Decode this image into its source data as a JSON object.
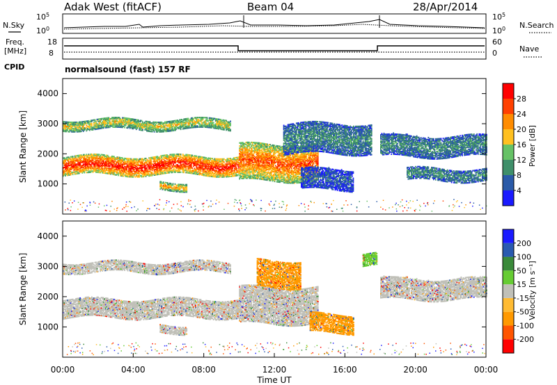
{
  "header": {
    "station": "Adak West (fitACF)",
    "beam": "Beam 04",
    "date": "28/Apr/2014"
  },
  "noise_panel": {
    "left_label": "N.Sky",
    "left_ticks": [
      "10^5",
      "10^0"
    ],
    "right_label": "N.Search",
    "right_ticks": [
      "10^5",
      "10^0"
    ]
  },
  "freq_panel": {
    "left_label_1": "Freq.",
    "left_label_2": "[MHz]",
    "left_ticks": [
      "18",
      "8"
    ],
    "right_label": "Nave",
    "right_ticks": [
      "60",
      "0"
    ],
    "cpid_label": "CPID",
    "cpid_text": "normalsound (fast) 157 RF"
  },
  "colors": {
    "power_bar": [
      "#1a1aff",
      "#2a5aa8",
      "#3f8f6a",
      "#66c266",
      "#ffc020",
      "#ff8c00",
      "#ff4000",
      "#ff0000"
    ],
    "velocity_bar": [
      "#ff0000",
      "#ff5500",
      "#ff9900",
      "#ffbb33",
      "#c0c0b8",
      "#66cc33",
      "#3a8a3a",
      "#2a5ab0",
      "#1a1aff"
    ],
    "ground_scatter": "#c0c0b8"
  },
  "chart_data": [
    {
      "type": "heatmap",
      "title": "Power",
      "ylabel": "Slant Range [km]",
      "colorbar_label": "Power [dB]",
      "colorbar_ticks": [
        "4",
        "8",
        "12",
        "16",
        "20",
        "24",
        "28"
      ],
      "xlim": [
        "00:00",
        "24:00"
      ],
      "ylim": [
        0,
        4500
      ],
      "yticks": [
        "1000",
        "2000",
        "3000",
        "4000"
      ],
      "bands": [
        {
          "t0": 0.0,
          "t1": 10.0,
          "r0": 1300,
          "r1": 1900,
          "level": 7
        },
        {
          "t0": 0.0,
          "t1": 9.5,
          "r0": 2800,
          "r1": 3150,
          "level": 4
        },
        {
          "t0": 5.5,
          "t1": 7.0,
          "r0": 800,
          "r1": 1050,
          "level": 5
        },
        {
          "t0": 10.0,
          "t1": 14.5,
          "r0": 1100,
          "r1": 2300,
          "level": 6
        },
        {
          "t0": 12.5,
          "t1": 17.5,
          "r0": 2000,
          "r1": 3000,
          "level": 2
        },
        {
          "t0": 13.5,
          "t1": 16.5,
          "r0": 800,
          "r1": 1500,
          "level": 1
        },
        {
          "t0": 18.0,
          "t1": 24.0,
          "r0": 1900,
          "r1": 2600,
          "level": 2
        },
        {
          "t0": 19.5,
          "t1": 24.0,
          "r0": 1100,
          "r1": 1500,
          "level": 2
        }
      ]
    },
    {
      "type": "heatmap",
      "title": "Velocity",
      "ylabel": "Slant Range [km]",
      "xlabel": "Time UT",
      "colorbar_label": "Velocity [m s⁻¹]",
      "colorbar_ticks": [
        "-200",
        "-100",
        "-50",
        "-15",
        "15",
        "50",
        "100",
        "200"
      ],
      "xlim": [
        "00:00",
        "24:00"
      ],
      "xticks": [
        "00:00",
        "04:00",
        "08:00",
        "12:00",
        "16:00",
        "20:00",
        "00:00"
      ],
      "ylim": [
        0,
        4500
      ],
      "yticks": [
        "1000",
        "2000",
        "3000",
        "4000"
      ],
      "bands": [
        {
          "t0": 0.0,
          "t1": 10.0,
          "r0": 1300,
          "r1": 1900,
          "level": 4
        },
        {
          "t0": 0.0,
          "t1": 9.5,
          "r0": 2800,
          "r1": 3150,
          "level": 4
        },
        {
          "t0": 5.5,
          "t1": 7.0,
          "r0": 800,
          "r1": 1050,
          "level": 4
        },
        {
          "t0": 10.0,
          "t1": 14.5,
          "r0": 1100,
          "r1": 2300,
          "level": 4
        },
        {
          "t0": 11.0,
          "t1": 13.5,
          "r0": 2300,
          "r1": 3200,
          "level": 2
        },
        {
          "t0": 14.0,
          "t1": 16.5,
          "r0": 800,
          "r1": 1400,
          "level": 2
        },
        {
          "t0": 17.0,
          "t1": 17.8,
          "r0": 3000,
          "r1": 3400,
          "level": 5
        },
        {
          "t0": 18.0,
          "t1": 24.0,
          "r0": 1900,
          "r1": 2600,
          "level": 4
        }
      ]
    }
  ]
}
